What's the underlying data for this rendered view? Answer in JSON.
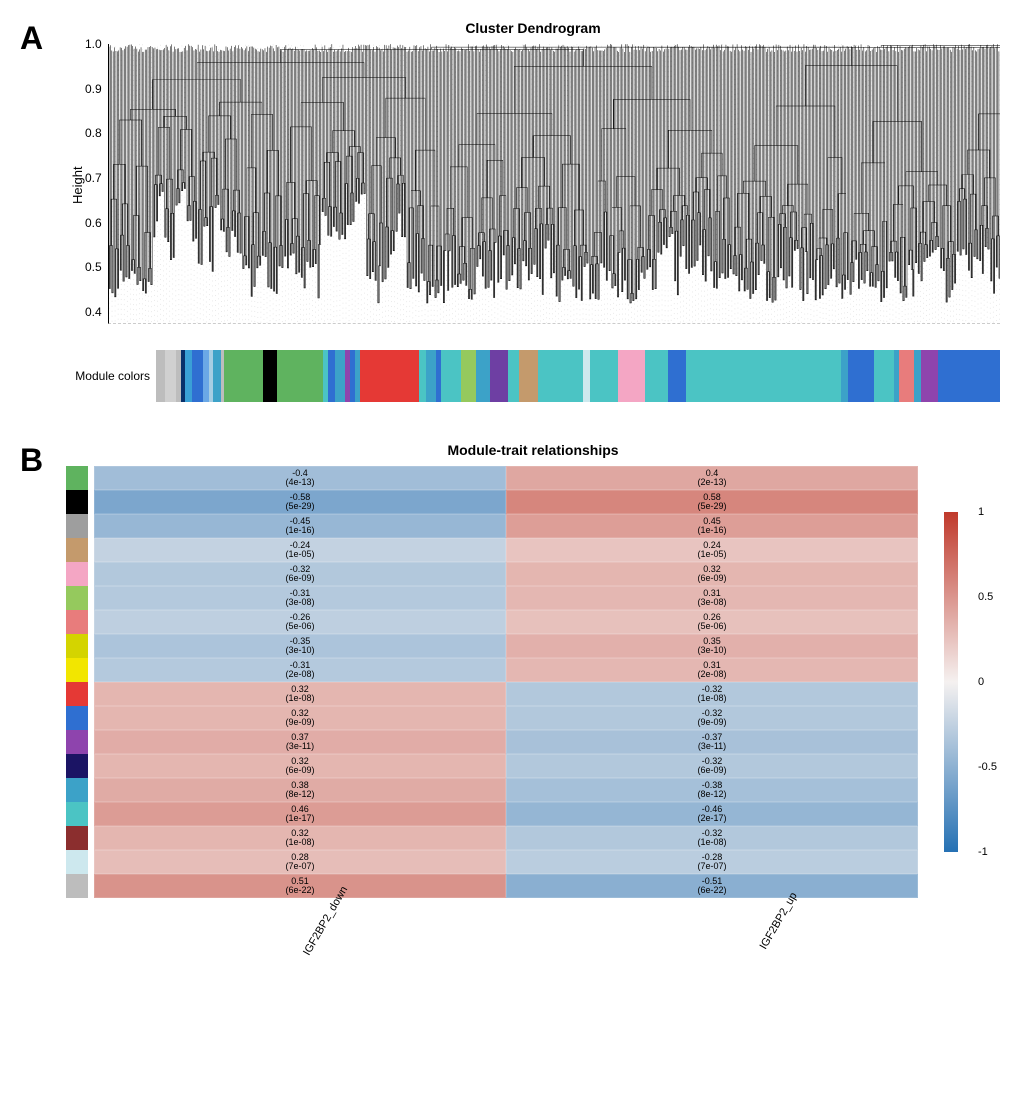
{
  "panelA": {
    "label": "A",
    "title": "Cluster Dendrogram",
    "ylabel": "Height",
    "ylim": [
      0.3,
      1.0
    ],
    "yticks": [
      "1.0",
      "0.9",
      "0.8",
      "0.7",
      "0.6",
      "0.5",
      "0.4"
    ],
    "module_row_label": "Module colors",
    "module_segments": [
      {
        "color": "#bdbdbd",
        "w": 1.0
      },
      {
        "color": "#d0d0d0",
        "w": 1.2
      },
      {
        "color": "#bdbdbd",
        "w": 0.6
      },
      {
        "color": "#08306b",
        "w": 0.4
      },
      {
        "color": "#3aa0d6",
        "w": 0.8
      },
      {
        "color": "#2f6fd1",
        "w": 1.2
      },
      {
        "color": "#6aa8e6",
        "w": 0.6
      },
      {
        "color": "#a6cee3",
        "w": 0.5
      },
      {
        "color": "#3ca2c8",
        "w": 0.8
      },
      {
        "color": "#bdbdbd",
        "w": 0.4
      },
      {
        "color": "#5fb35f",
        "w": 4.2
      },
      {
        "color": "#000000",
        "w": 1.6
      },
      {
        "color": "#5fb35f",
        "w": 5.0
      },
      {
        "color": "#4bc4c4",
        "w": 0.6
      },
      {
        "color": "#2f6fd1",
        "w": 0.8
      },
      {
        "color": "#3ca2c8",
        "w": 1.0
      },
      {
        "color": "#8e44ad",
        "w": 0.6
      },
      {
        "color": "#2f6fd1",
        "w": 0.6
      },
      {
        "color": "#3ca2c8",
        "w": 0.5
      },
      {
        "color": "#e53935",
        "w": 6.5
      },
      {
        "color": "#4bc4c4",
        "w": 0.8
      },
      {
        "color": "#3ca2c8",
        "w": 1.0
      },
      {
        "color": "#2f6fd1",
        "w": 0.6
      },
      {
        "color": "#4bc4c4",
        "w": 2.2
      },
      {
        "color": "#95c95d",
        "w": 1.6
      },
      {
        "color": "#3ca2c8",
        "w": 1.6
      },
      {
        "color": "#6e3fa3",
        "w": 2.0
      },
      {
        "color": "#4bc4c4",
        "w": 1.2
      },
      {
        "color": "#c49a6c",
        "w": 2.0
      },
      {
        "color": "#4bc4c4",
        "w": 5.0
      },
      {
        "color": "#cde9ee",
        "w": 0.8
      },
      {
        "color": "#4bc4c4",
        "w": 3.0
      },
      {
        "color": "#f4a6c4",
        "w": 3.0
      },
      {
        "color": "#4bc4c4",
        "w": 2.5
      },
      {
        "color": "#2f6fd1",
        "w": 2.0
      },
      {
        "color": "#4bc4c4",
        "w": 17.0
      },
      {
        "color": "#3ca2c8",
        "w": 0.8
      },
      {
        "color": "#2f6fd1",
        "w": 2.8
      },
      {
        "color": "#4bc4c4",
        "w": 2.2
      },
      {
        "color": "#3ca2c8",
        "w": 0.6
      },
      {
        "color": "#e87c7c",
        "w": 1.6
      },
      {
        "color": "#3ca2c8",
        "w": 0.8
      },
      {
        "color": "#8e44ad",
        "w": 1.8
      },
      {
        "color": "#2f6fd1",
        "w": 6.8
      }
    ]
  },
  "panelB": {
    "label": "B",
    "title": "Module-trait relationships",
    "xlabels": [
      "IGF2BP2_down",
      "IGF2BP2_up"
    ],
    "colorbar": {
      "min": -1,
      "max": 1,
      "ticks": [
        {
          "v": 1,
          "label": "1"
        },
        {
          "v": 0.5,
          "label": "0.5"
        },
        {
          "v": 0,
          "label": "0"
        },
        {
          "v": -0.5,
          "label": "-0.5"
        },
        {
          "v": -1,
          "label": "-1"
        }
      ],
      "gradient_top": "#c0392b",
      "gradient_mid": "#f5f1f0",
      "gradient_bot": "#2571b4"
    },
    "row_colors": [
      "#5fb35f",
      "#000000",
      "#9e9e9e",
      "#c49a6c",
      "#f4a6c4",
      "#95c95d",
      "#e87c7c",
      "#d4d400",
      "#f2e600",
      "#e53935",
      "#2f6fd1",
      "#8e44ad",
      "#1b1464",
      "#3ca2c8",
      "#4bc4c4",
      "#8b2e2e",
      "#cde8ee",
      "#bdbdbd"
    ],
    "rows": [
      {
        "down": {
          "r": -0.4,
          "p": "4e-13"
        },
        "up": {
          "r": 0.4,
          "p": "2e-13"
        }
      },
      {
        "down": {
          "r": -0.58,
          "p": "5e-29"
        },
        "up": {
          "r": 0.58,
          "p": "5e-29"
        }
      },
      {
        "down": {
          "r": -0.45,
          "p": "1e-16"
        },
        "up": {
          "r": 0.45,
          "p": "1e-16"
        }
      },
      {
        "down": {
          "r": -0.24,
          "p": "1e-05"
        },
        "up": {
          "r": 0.24,
          "p": "1e-05"
        }
      },
      {
        "down": {
          "r": -0.32,
          "p": "6e-09"
        },
        "up": {
          "r": 0.32,
          "p": "6e-09"
        }
      },
      {
        "down": {
          "r": -0.31,
          "p": "3e-08"
        },
        "up": {
          "r": 0.31,
          "p": "3e-08"
        }
      },
      {
        "down": {
          "r": -0.26,
          "p": "5e-06"
        },
        "up": {
          "r": 0.26,
          "p": "5e-06"
        }
      },
      {
        "down": {
          "r": -0.35,
          "p": "3e-10"
        },
        "up": {
          "r": 0.35,
          "p": "3e-10"
        }
      },
      {
        "down": {
          "r": -0.31,
          "p": "2e-08"
        },
        "up": {
          "r": 0.31,
          "p": "2e-08"
        }
      },
      {
        "down": {
          "r": 0.32,
          "p": "1e-08"
        },
        "up": {
          "r": -0.32,
          "p": "1e-08"
        }
      },
      {
        "down": {
          "r": 0.32,
          "p": "9e-09"
        },
        "up": {
          "r": -0.32,
          "p": "9e-09"
        }
      },
      {
        "down": {
          "r": 0.37,
          "p": "3e-11"
        },
        "up": {
          "r": -0.37,
          "p": "3e-11"
        }
      },
      {
        "down": {
          "r": 0.32,
          "p": "6e-09"
        },
        "up": {
          "r": -0.32,
          "p": "6e-09"
        }
      },
      {
        "down": {
          "r": 0.38,
          "p": "8e-12"
        },
        "up": {
          "r": -0.38,
          "p": "8e-12"
        }
      },
      {
        "down": {
          "r": 0.46,
          "p": "1e-17"
        },
        "up": {
          "r": -0.46,
          "p": "2e-17"
        }
      },
      {
        "down": {
          "r": 0.32,
          "p": "1e-08"
        },
        "up": {
          "r": -0.32,
          "p": "1e-08"
        }
      },
      {
        "down": {
          "r": 0.28,
          "p": "7e-07"
        },
        "up": {
          "r": -0.28,
          "p": "7e-07"
        }
      },
      {
        "down": {
          "r": 0.51,
          "p": "6e-22"
        },
        "up": {
          "r": -0.51,
          "p": "6e-22"
        }
      }
    ]
  }
}
